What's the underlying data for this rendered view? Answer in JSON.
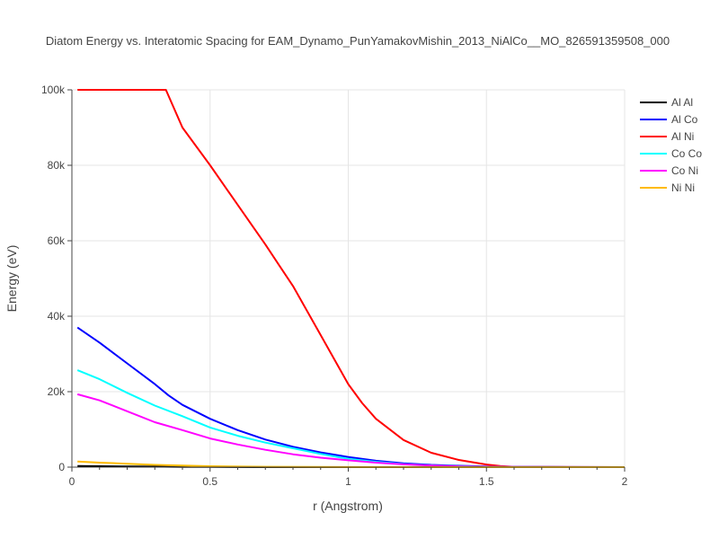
{
  "chart_data": {
    "type": "line",
    "title": "Diatom Energy vs. Interatomic Spacing for EAM_Dynamo_PunYamakovMishin_2013_NiAlCo__MO_826591359508_000",
    "xlabel": "r (Angstrom)",
    "ylabel": "Energy (eV)",
    "xlim": [
      0,
      2
    ],
    "ylim": [
      0,
      100000
    ],
    "xticks": [
      0,
      0.5,
      1,
      1.5,
      2
    ],
    "xtick_labels": [
      "0",
      "0.5",
      "1",
      "1.5",
      "2"
    ],
    "yticks": [
      0,
      20000,
      40000,
      60000,
      80000,
      100000
    ],
    "ytick_labels": [
      "0",
      "20k",
      "40k",
      "60k",
      "80k",
      "100k"
    ],
    "grid": true,
    "legend_position": "top-right",
    "series": [
      {
        "name": "Al Al",
        "color": "#000000",
        "x": [
          0.02,
          0.1,
          0.2,
          0.3,
          0.4,
          0.5,
          0.7,
          1.0,
          1.5,
          2.0
        ],
        "y": [
          300,
          250,
          200,
          150,
          80,
          40,
          10,
          0,
          0,
          0
        ]
      },
      {
        "name": "Al Co",
        "color": "#0000ff",
        "x": [
          0.02,
          0.1,
          0.2,
          0.3,
          0.35,
          0.4,
          0.5,
          0.6,
          0.7,
          0.8,
          0.9,
          1.0,
          1.1,
          1.2,
          1.3,
          1.4,
          1.5,
          1.6,
          1.8,
          2.0
        ],
        "y": [
          37000,
          33000,
          27500,
          22000,
          19000,
          16500,
          12800,
          9800,
          7300,
          5400,
          3900,
          2700,
          1700,
          1000,
          600,
          350,
          200,
          100,
          30,
          0
        ]
      },
      {
        "name": "Al Ni",
        "color": "#ff0000",
        "x": [
          0.02,
          0.1,
          0.2,
          0.3,
          0.34,
          0.4,
          0.5,
          0.6,
          0.7,
          0.75,
          0.8,
          0.9,
          1.0,
          1.05,
          1.1,
          1.2,
          1.3,
          1.4,
          1.5,
          1.55,
          1.6,
          1.8,
          2.0
        ],
        "y": [
          100000,
          100000,
          100000,
          100000,
          100000,
          90000,
          80000,
          69500,
          59000,
          53500,
          48000,
          35000,
          22000,
          17000,
          12800,
          7200,
          3800,
          1900,
          700,
          300,
          100,
          20,
          0
        ]
      },
      {
        "name": "Co Co",
        "color": "#00ffff",
        "x": [
          0.02,
          0.1,
          0.2,
          0.3,
          0.4,
          0.5,
          0.6,
          0.7,
          0.8,
          0.9,
          1.0,
          1.1,
          1.2,
          1.3,
          1.4,
          1.5,
          1.6,
          1.8,
          2.0
        ],
        "y": [
          25700,
          23300,
          19700,
          16300,
          13500,
          10500,
          8300,
          6500,
          5000,
          3500,
          2200,
          1400,
          800,
          450,
          250,
          120,
          50,
          10,
          0
        ]
      },
      {
        "name": "Co Ni",
        "color": "#ff00ff",
        "x": [
          0.02,
          0.1,
          0.2,
          0.3,
          0.4,
          0.5,
          0.6,
          0.7,
          0.8,
          0.9,
          1.0,
          1.1,
          1.2,
          1.3,
          1.4,
          1.5,
          1.6,
          1.8,
          2.0
        ],
        "y": [
          19300,
          17700,
          14800,
          11900,
          9800,
          7600,
          6000,
          4600,
          3400,
          2500,
          1800,
          1200,
          750,
          400,
          200,
          100,
          40,
          10,
          0
        ]
      },
      {
        "name": "Ni Ni",
        "color": "#ffbb00",
        "x": [
          0.02,
          0.1,
          0.2,
          0.3,
          0.4,
          0.5,
          0.7,
          1.0,
          1.5,
          2.0
        ],
        "y": [
          1500,
          1200,
          900,
          600,
          400,
          250,
          100,
          20,
          0,
          0
        ]
      }
    ]
  }
}
